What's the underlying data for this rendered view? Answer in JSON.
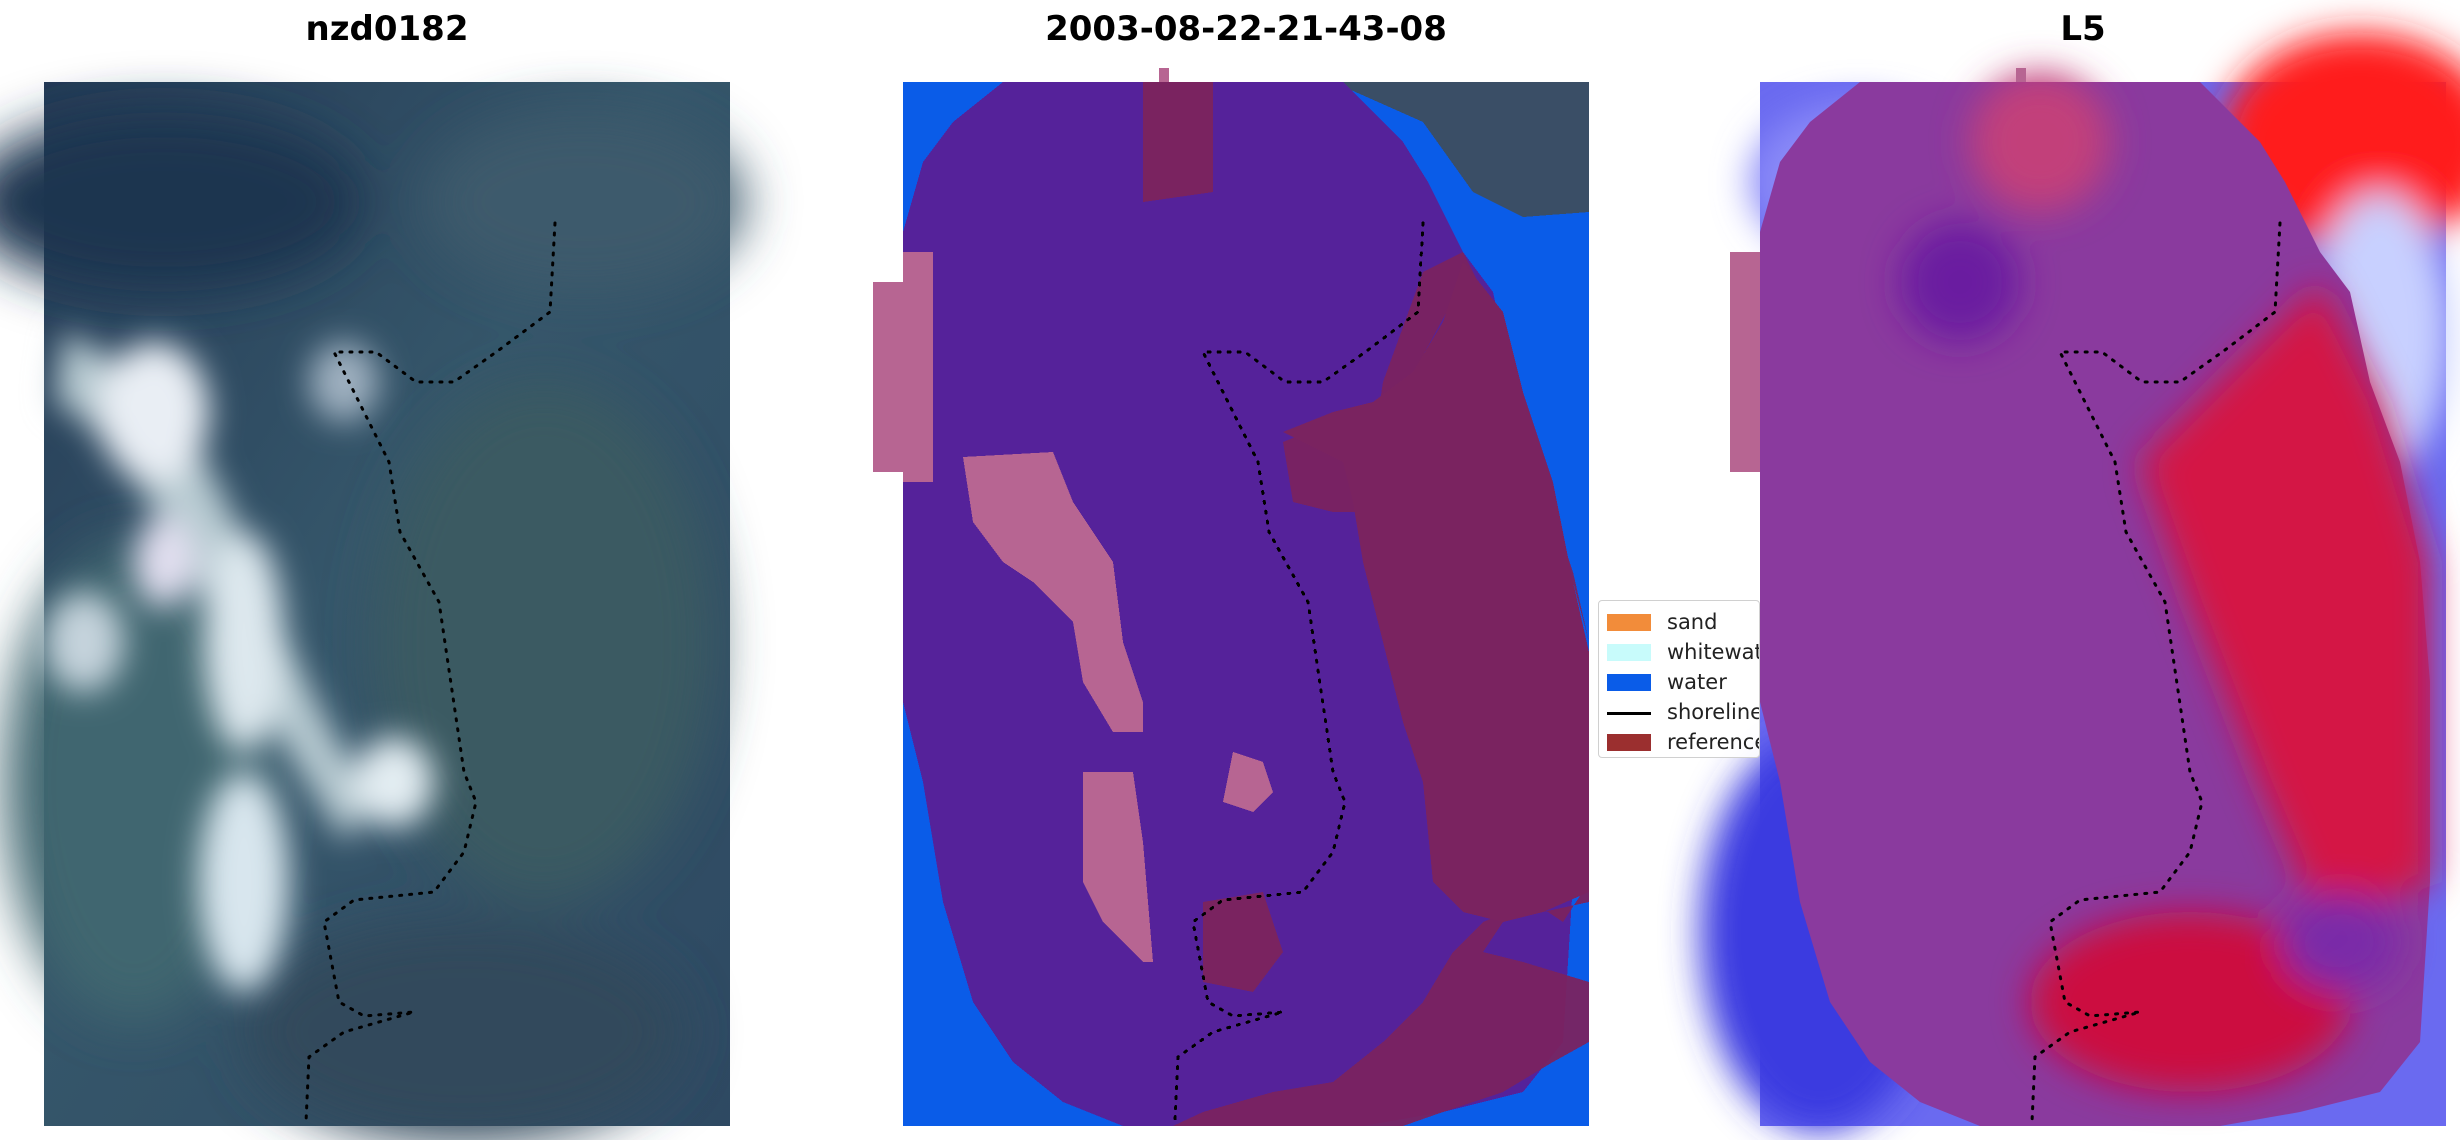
{
  "panels": [
    {
      "title": "nzd0182"
    },
    {
      "title": "2003-08-22-21-43-08"
    },
    {
      "title": "L5"
    }
  ],
  "legend": {
    "items": [
      {
        "label": "sand",
        "kind": "patch",
        "color": "#f28c3a"
      },
      {
        "label": "whitewater",
        "kind": "patch",
        "color": "#c8fbfb"
      },
      {
        "label": "water",
        "kind": "patch",
        "color": "#0a5ce8"
      },
      {
        "label": "shoreline",
        "kind": "line",
        "color": "#000000"
      },
      {
        "label": "reference",
        "kind": "patch",
        "color": "#9b2f2f"
      }
    ]
  },
  "colors": {
    "water": "#0a5ce8",
    "reference_region": "#7a2360",
    "mask_purple": "#55229a",
    "mask_pink": "#b76592",
    "rgb_dark_sea": "#2f4660",
    "rgb_breaker": "#d8e6ee",
    "index_blue": "#4a4ae8",
    "index_red": "#e8103a",
    "index_purple": "#8a3a9e"
  }
}
